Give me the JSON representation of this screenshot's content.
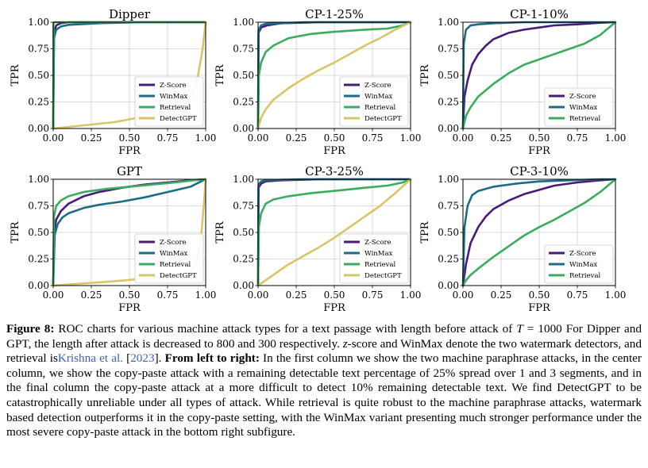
{
  "figure": {
    "panels_layout": "2 rows x 3 columns",
    "series_colors": {
      "Z-Score": "#4a1a7a",
      "WinMax": "#1b6d86",
      "Retrieval": "#3aad5c",
      "DetectGPT": "#d9c566"
    }
  },
  "chart_data": [
    {
      "type": "line",
      "title": "Dipper",
      "xlabel": "FPR",
      "ylabel": "TPR",
      "xlim": [
        0,
        1
      ],
      "ylim": [
        0,
        1
      ],
      "xticks": [
        "0.00",
        "0.25",
        "0.50",
        "0.75",
        "1.00"
      ],
      "yticks": [
        "0.00",
        "0.25",
        "0.50",
        "0.75",
        "1.00"
      ],
      "grid": true,
      "legend": "bottom-right",
      "series": [
        {
          "name": "Z-Score",
          "color": "#4a1a7a",
          "x": [
            0,
            0.005,
            0.02,
            0.05,
            0.1,
            0.3,
            1
          ],
          "y": [
            0,
            0.9,
            0.97,
            0.99,
            1,
            1,
            1
          ]
        },
        {
          "name": "WinMax",
          "color": "#1b6d86",
          "x": [
            0,
            0.005,
            0.02,
            0.05,
            0.1,
            0.3,
            0.6,
            1
          ],
          "y": [
            0,
            0.85,
            0.93,
            0.96,
            0.975,
            0.99,
            1,
            1
          ]
        },
        {
          "name": "Retrieval",
          "color": "#3aad5c",
          "x": [
            0,
            0.002,
            0.01,
            0.05,
            1
          ],
          "y": [
            0,
            0.99,
            1,
            1,
            1
          ]
        },
        {
          "name": "DetectGPT",
          "color": "#d9c566",
          "x": [
            0,
            0.2,
            0.4,
            0.55,
            0.7,
            0.8,
            0.88,
            0.92,
            0.95,
            0.98,
            1
          ],
          "y": [
            0,
            0.03,
            0.06,
            0.1,
            0.14,
            0.18,
            0.25,
            0.35,
            0.5,
            0.75,
            1
          ]
        }
      ]
    },
    {
      "type": "line",
      "title": "CP-1-25%",
      "xlabel": "FPR",
      "ylabel": "TPR",
      "xlim": [
        0,
        1
      ],
      "ylim": [
        0,
        1
      ],
      "xticks": [
        "0.00",
        "0.25",
        "0.50",
        "0.75",
        "1.00"
      ],
      "yticks": [
        "0.00",
        "0.25",
        "0.50",
        "0.75",
        "1.00"
      ],
      "grid": true,
      "legend": "bottom-right",
      "series": [
        {
          "name": "Z-Score",
          "color": "#4a1a7a",
          "x": [
            0,
            0.003,
            0.02,
            0.06,
            0.15,
            0.4,
            1
          ],
          "y": [
            0,
            0.9,
            0.95,
            0.97,
            0.99,
            1,
            1
          ]
        },
        {
          "name": "WinMax",
          "color": "#1b6d86",
          "x": [
            0,
            0.003,
            0.02,
            0.05,
            0.15,
            0.3,
            0.6,
            1
          ],
          "y": [
            0,
            0.93,
            0.97,
            0.985,
            0.99,
            1,
            1,
            1
          ]
        },
        {
          "name": "Retrieval",
          "color": "#3aad5c",
          "x": [
            0,
            0.005,
            0.02,
            0.05,
            0.1,
            0.2,
            0.35,
            0.5,
            0.7,
            0.85,
            0.95,
            1
          ],
          "y": [
            0,
            0.5,
            0.62,
            0.72,
            0.78,
            0.85,
            0.89,
            0.91,
            0.93,
            0.94,
            0.97,
            1
          ]
        },
        {
          "name": "DetectGPT",
          "color": "#d9c566",
          "x": [
            0,
            0.02,
            0.05,
            0.1,
            0.2,
            0.3,
            0.4,
            0.5,
            0.6,
            0.7,
            0.8,
            0.9,
            1
          ],
          "y": [
            0,
            0.1,
            0.18,
            0.27,
            0.38,
            0.47,
            0.55,
            0.62,
            0.7,
            0.78,
            0.85,
            0.93,
            1
          ]
        }
      ]
    },
    {
      "type": "line",
      "title": "CP-1-10%",
      "xlabel": "FPR",
      "ylabel": "TPR",
      "xlim": [
        0,
        1
      ],
      "ylim": [
        0,
        1
      ],
      "xticks": [
        "0.00",
        "0.25",
        "0.50",
        "0.75",
        "1.00"
      ],
      "yticks": [
        "0.00",
        "0.25",
        "0.50",
        "0.75",
        "1.00"
      ],
      "grid": true,
      "legend": "bottom-right",
      "series": [
        {
          "name": "Z-Score",
          "color": "#4a1a7a",
          "x": [
            0,
            0.01,
            0.03,
            0.06,
            0.1,
            0.15,
            0.2,
            0.3,
            0.4,
            0.5,
            0.6,
            0.75,
            0.9,
            1
          ],
          "y": [
            0,
            0.3,
            0.45,
            0.6,
            0.7,
            0.78,
            0.84,
            0.9,
            0.93,
            0.95,
            0.97,
            0.98,
            0.995,
            1
          ]
        },
        {
          "name": "WinMax",
          "color": "#1b6d86",
          "x": [
            0,
            0.005,
            0.02,
            0.05,
            0.1,
            0.2,
            0.4,
            0.6,
            1
          ],
          "y": [
            0,
            0.8,
            0.93,
            0.97,
            0.98,
            0.99,
            1,
            1,
            1
          ]
        },
        {
          "name": "Retrieval",
          "color": "#3aad5c",
          "x": [
            0,
            0.02,
            0.05,
            0.1,
            0.2,
            0.3,
            0.4,
            0.5,
            0.6,
            0.7,
            0.8,
            0.9,
            1
          ],
          "y": [
            0,
            0.12,
            0.2,
            0.3,
            0.42,
            0.52,
            0.6,
            0.65,
            0.7,
            0.75,
            0.8,
            0.88,
            1
          ]
        }
      ]
    },
    {
      "type": "line",
      "title": "GPT",
      "xlabel": "FPR",
      "ylabel": "TPR",
      "xlim": [
        0,
        1
      ],
      "ylim": [
        0,
        1
      ],
      "xticks": [
        "0.00",
        "0.25",
        "0.50",
        "0.75",
        "1.00"
      ],
      "yticks": [
        "0.00",
        "0.25",
        "0.50",
        "0.75",
        "1.00"
      ],
      "grid": true,
      "legend": "bottom-right",
      "series": [
        {
          "name": "Z-Score",
          "color": "#4a1a7a",
          "x": [
            0,
            0.005,
            0.02,
            0.05,
            0.1,
            0.2,
            0.3,
            0.45,
            0.6,
            0.75,
            0.9,
            1
          ],
          "y": [
            0,
            0.5,
            0.62,
            0.7,
            0.77,
            0.84,
            0.88,
            0.92,
            0.95,
            0.97,
            0.99,
            1
          ]
        },
        {
          "name": "WinMax",
          "color": "#1b6d86",
          "x": [
            0,
            0.01,
            0.03,
            0.06,
            0.1,
            0.2,
            0.3,
            0.45,
            0.6,
            0.75,
            0.9,
            0.97,
            1
          ],
          "y": [
            0,
            0.48,
            0.58,
            0.64,
            0.68,
            0.73,
            0.76,
            0.79,
            0.83,
            0.88,
            0.93,
            0.98,
            1
          ]
        },
        {
          "name": "Retrieval",
          "color": "#3aad5c",
          "x": [
            0,
            0.005,
            0.02,
            0.05,
            0.1,
            0.2,
            0.35,
            0.5,
            0.65,
            0.8,
            0.92,
            1
          ],
          "y": [
            0,
            0.65,
            0.75,
            0.8,
            0.84,
            0.88,
            0.91,
            0.93,
            0.95,
            0.97,
            0.99,
            1
          ]
        },
        {
          "name": "DetectGPT",
          "color": "#d9c566",
          "x": [
            0,
            0.2,
            0.4,
            0.55,
            0.7,
            0.82,
            0.9,
            0.94,
            0.97,
            0.99,
            1
          ],
          "y": [
            0,
            0.02,
            0.04,
            0.06,
            0.08,
            0.1,
            0.13,
            0.2,
            0.45,
            0.8,
            1
          ]
        }
      ]
    },
    {
      "type": "line",
      "title": "CP-3-25%",
      "xlabel": "FPR",
      "ylabel": "TPR",
      "xlim": [
        0,
        1
      ],
      "ylim": [
        0,
        1
      ],
      "xticks": [
        "0.00",
        "0.25",
        "0.50",
        "0.75",
        "1.00"
      ],
      "yticks": [
        "0.00",
        "0.25",
        "0.50",
        "0.75",
        "1.00"
      ],
      "grid": true,
      "legend": "bottom-right",
      "series": [
        {
          "name": "Z-Score",
          "color": "#4a1a7a",
          "x": [
            0,
            0.003,
            0.02,
            0.05,
            0.15,
            0.4,
            1
          ],
          "y": [
            0,
            0.92,
            0.96,
            0.98,
            0.99,
            1,
            1
          ]
        },
        {
          "name": "WinMax",
          "color": "#1b6d86",
          "x": [
            0,
            0.003,
            0.02,
            0.05,
            0.15,
            0.3,
            1
          ],
          "y": [
            0,
            0.95,
            0.98,
            0.99,
            0.995,
            1,
            1
          ]
        },
        {
          "name": "Retrieval",
          "color": "#3aad5c",
          "x": [
            0,
            0.005,
            0.02,
            0.05,
            0.1,
            0.2,
            0.35,
            0.5,
            0.7,
            0.85,
            0.95,
            1
          ],
          "y": [
            0,
            0.55,
            0.68,
            0.77,
            0.81,
            0.84,
            0.87,
            0.89,
            0.92,
            0.94,
            0.97,
            1
          ]
        },
        {
          "name": "DetectGPT",
          "color": "#d9c566",
          "x": [
            0,
            0.05,
            0.1,
            0.2,
            0.3,
            0.4,
            0.5,
            0.6,
            0.7,
            0.8,
            0.9,
            1
          ],
          "y": [
            0,
            0.05,
            0.1,
            0.2,
            0.28,
            0.36,
            0.45,
            0.55,
            0.65,
            0.75,
            0.87,
            1
          ]
        }
      ]
    },
    {
      "type": "line",
      "title": "CP-3-10%",
      "xlabel": "FPR",
      "ylabel": "TPR",
      "xlim": [
        0,
        1
      ],
      "ylim": [
        0,
        1
      ],
      "xticks": [
        "0.00",
        "0.25",
        "0.50",
        "0.75",
        "1.00"
      ],
      "yticks": [
        "0.00",
        "0.25",
        "0.50",
        "0.75",
        "1.00"
      ],
      "grid": true,
      "legend": "bottom-right",
      "series": [
        {
          "name": "Z-Score",
          "color": "#4a1a7a",
          "x": [
            0,
            0.02,
            0.05,
            0.1,
            0.15,
            0.2,
            0.3,
            0.4,
            0.5,
            0.6,
            0.75,
            0.9,
            1
          ],
          "y": [
            0,
            0.2,
            0.4,
            0.55,
            0.65,
            0.72,
            0.8,
            0.86,
            0.9,
            0.94,
            0.97,
            0.99,
            1
          ]
        },
        {
          "name": "WinMax",
          "color": "#1b6d86",
          "x": [
            0,
            0.01,
            0.03,
            0.06,
            0.1,
            0.2,
            0.35,
            0.5,
            0.7,
            0.9,
            1
          ],
          "y": [
            0,
            0.55,
            0.75,
            0.85,
            0.89,
            0.93,
            0.96,
            0.98,
            0.99,
            1,
            1
          ]
        },
        {
          "name": "Retrieval",
          "color": "#3aad5c",
          "x": [
            0,
            0.02,
            0.05,
            0.1,
            0.2,
            0.3,
            0.4,
            0.5,
            0.6,
            0.7,
            0.8,
            0.9,
            1
          ],
          "y": [
            0,
            0.05,
            0.1,
            0.16,
            0.27,
            0.37,
            0.47,
            0.55,
            0.62,
            0.7,
            0.78,
            0.88,
            1
          ]
        }
      ]
    }
  ],
  "caption": {
    "lead": "Figure 8:",
    "s1": " ROC charts for various machine attack types for a text passage with length before attack of ",
    "t_var": "T",
    "s1b": " = 1000 For Dipper and GPT, the length after attack is decreased to 800 and 300 respectively. ",
    "z_var": "z",
    "s2": "-score and WinMax denote the two watermark detectors, and retrieval is",
    "cite_name": "Krishna et al.",
    "cite_open": " [",
    "cite_year": "2023",
    "cite_close": "]. ",
    "emph": "From left to right:",
    "s3": " In the first column we show the two machine paraphrase attacks, in the center column, we show the copy-paste attack with a remaining detectable text percentage of 25% spread over 1 and 3 segments, and in the final column the copy-paste attack at a more difficult to detect 10% remaining detectable text. We find DetectGPT to be catastrophically unreliable under all types of attack. While retrieval is quite robust to the machine paraphrase attacks, watermark based detection outperforms it in the copy-paste setting, with the WinMax variant presenting much stronger performance under the most severe copy-paste attack in the bottom right subfigure."
  }
}
